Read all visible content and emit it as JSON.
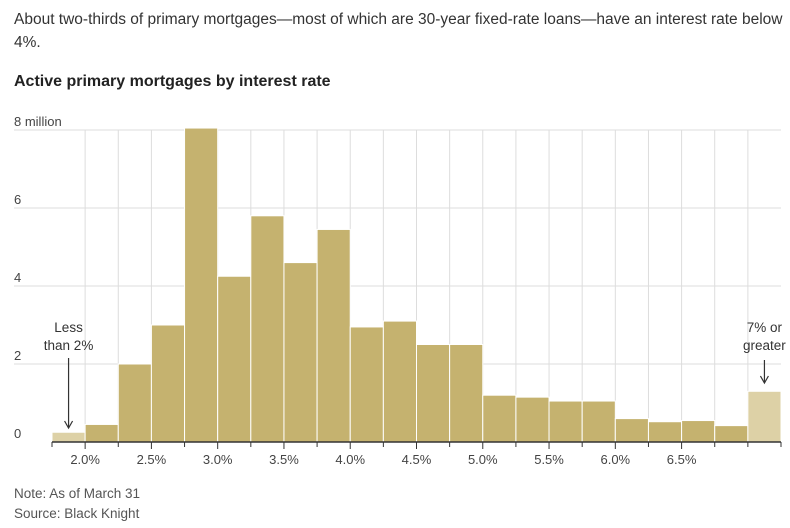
{
  "header": {
    "intro": "About two-thirds of primary mortgages—most of which are 30-year fixed-rate loans—have an interest rate below 4%.",
    "title": "Active primary mortgages by interest rate"
  },
  "footer": {
    "note": "Note: As of March 31",
    "source": "Source: Black Knight"
  },
  "chart_data": {
    "type": "bar",
    "title": "Active primary mortgages by interest rate",
    "ylabel": "",
    "xlabel": "",
    "ylim": [
      0,
      8
    ],
    "yticks": [
      {
        "value": 0,
        "label": "0"
      },
      {
        "value": 2,
        "label": "2"
      },
      {
        "value": 4,
        "label": "4"
      },
      {
        "value": 6,
        "label": "6"
      },
      {
        "value": 8,
        "label": "8 million"
      }
    ],
    "xticks": [
      {
        "value": 2.0,
        "label": "2.0%"
      },
      {
        "value": 2.5,
        "label": "2.5%"
      },
      {
        "value": 3.0,
        "label": "3.0%"
      },
      {
        "value": 3.5,
        "label": "3.5%"
      },
      {
        "value": 4.0,
        "label": "4.0%"
      },
      {
        "value": 4.5,
        "label": "4.5%"
      },
      {
        "value": 5.0,
        "label": "5.0%"
      },
      {
        "value": 5.5,
        "label": "5.5%"
      },
      {
        "value": 6.0,
        "label": "6.0%"
      },
      {
        "value": 6.5,
        "label": "6.5%"
      }
    ],
    "bars": [
      {
        "start": 1.75,
        "end": 2.0,
        "value": 0.25,
        "group": "less"
      },
      {
        "start": 2.0,
        "end": 2.25,
        "value": 0.45
      },
      {
        "start": 2.25,
        "end": 2.5,
        "value": 2.0
      },
      {
        "start": 2.5,
        "end": 2.75,
        "value": 3.0
      },
      {
        "start": 2.75,
        "end": 3.0,
        "value": 8.05
      },
      {
        "start": 3.0,
        "end": 3.25,
        "value": 4.25
      },
      {
        "start": 3.25,
        "end": 3.5,
        "value": 5.8
      },
      {
        "start": 3.5,
        "end": 3.75,
        "value": 4.6
      },
      {
        "start": 3.75,
        "end": 4.0,
        "value": 5.45
      },
      {
        "start": 4.0,
        "end": 4.25,
        "value": 2.95
      },
      {
        "start": 4.25,
        "end": 4.5,
        "value": 3.1
      },
      {
        "start": 4.5,
        "end": 4.75,
        "value": 2.5
      },
      {
        "start": 4.75,
        "end": 5.0,
        "value": 2.5
      },
      {
        "start": 5.0,
        "end": 5.25,
        "value": 1.2
      },
      {
        "start": 5.25,
        "end": 5.5,
        "value": 1.15
      },
      {
        "start": 5.5,
        "end": 5.75,
        "value": 1.05
      },
      {
        "start": 5.75,
        "end": 6.0,
        "value": 1.05
      },
      {
        "start": 6.0,
        "end": 6.25,
        "value": 0.6
      },
      {
        "start": 6.25,
        "end": 6.5,
        "value": 0.52
      },
      {
        "start": 6.5,
        "end": 6.75,
        "value": 0.55
      },
      {
        "start": 6.75,
        "end": 7.0,
        "value": 0.42
      },
      {
        "start": 7.0,
        "end": 7.25,
        "value": 1.3,
        "group": "greater"
      }
    ],
    "annotations": {
      "less": [
        "Less",
        "than 2%"
      ],
      "greater": [
        "7% or",
        "greater"
      ]
    },
    "colors": {
      "bar": "#c5b26f",
      "bar_edge": "#ffffff",
      "bar_light": "#ddd1a6",
      "grid": "#dddddd",
      "axis": "#333333",
      "tick_text": "#444444"
    },
    "grid": true
  }
}
